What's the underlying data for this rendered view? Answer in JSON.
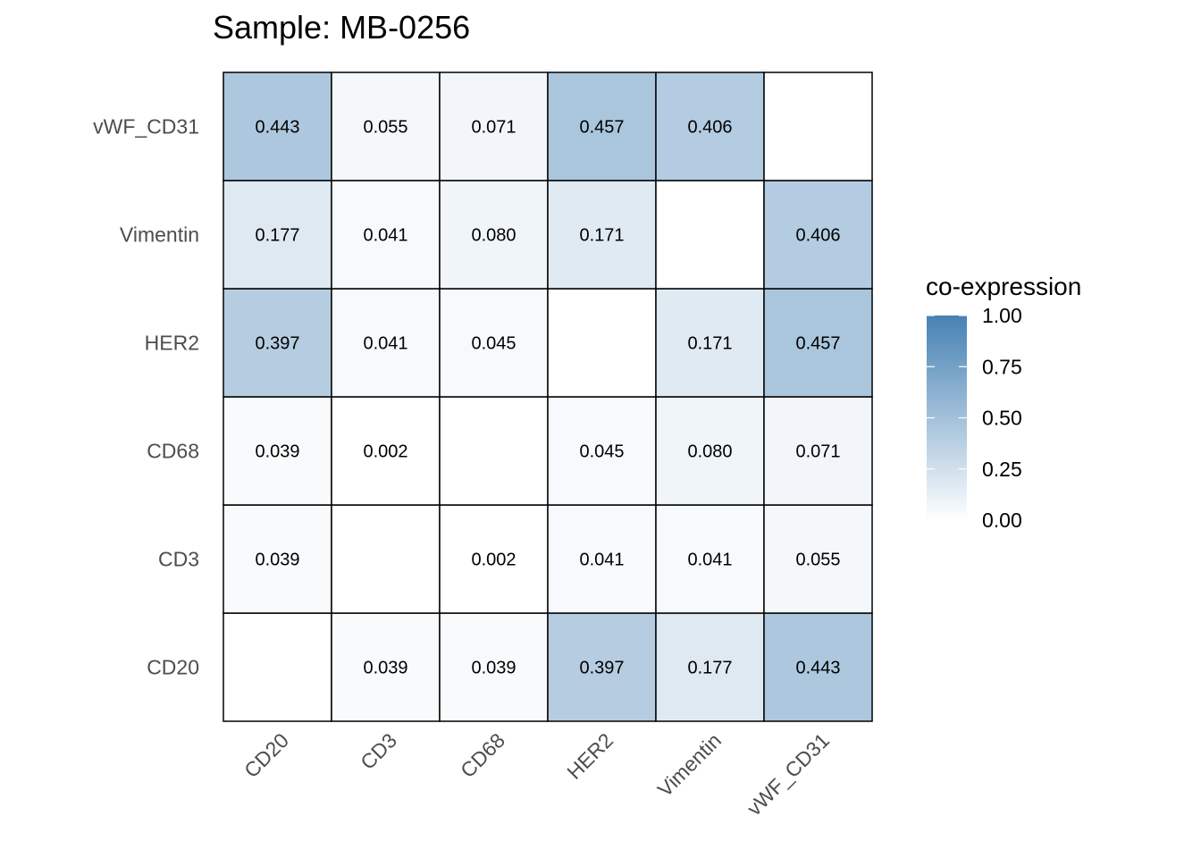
{
  "chart_data": {
    "type": "heatmap",
    "title": "Sample: MB-0256",
    "x_categories": [
      "CD20",
      "CD3",
      "CD68",
      "HER2",
      "Vimentin",
      "vWF_CD31"
    ],
    "y_categories": [
      "CD20",
      "CD3",
      "CD68",
      "HER2",
      "Vimentin",
      "vWF_CD31"
    ],
    "values": [
      [
        null,
        0.039,
        0.039,
        0.397,
        0.177,
        0.443
      ],
      [
        0.039,
        null,
        0.002,
        0.041,
        0.041,
        0.055
      ],
      [
        0.039,
        0.002,
        null,
        0.045,
        0.08,
        0.071
      ],
      [
        0.397,
        0.041,
        0.045,
        null,
        0.171,
        0.457
      ],
      [
        0.177,
        0.041,
        0.08,
        0.171,
        null,
        0.406
      ],
      [
        0.443,
        0.055,
        0.071,
        0.457,
        0.406,
        null
      ]
    ],
    "value_labels": [
      [
        "",
        "0.039",
        "0.039",
        "0.397",
        "0.177",
        "0.443"
      ],
      [
        "0.039",
        "",
        "0.002",
        "0.041",
        "0.041",
        "0.055"
      ],
      [
        "0.039",
        "0.002",
        "",
        "0.045",
        "0.080",
        "0.071"
      ],
      [
        "0.397",
        "0.041",
        "0.045",
        "",
        "0.171",
        "0.457"
      ],
      [
        "0.177",
        "0.041",
        "0.080",
        "0.171",
        "",
        "0.406"
      ],
      [
        "0.443",
        "0.055",
        "0.071",
        "0.457",
        "0.406",
        ""
      ]
    ],
    "legend": {
      "title": "co-expression",
      "range": [
        0,
        1
      ],
      "ticks": [
        "0.00",
        "0.25",
        "0.50",
        "0.75",
        "1.00"
      ],
      "low_color": "#ffffff",
      "high_color": "#4682b4",
      "placement": "right"
    }
  }
}
